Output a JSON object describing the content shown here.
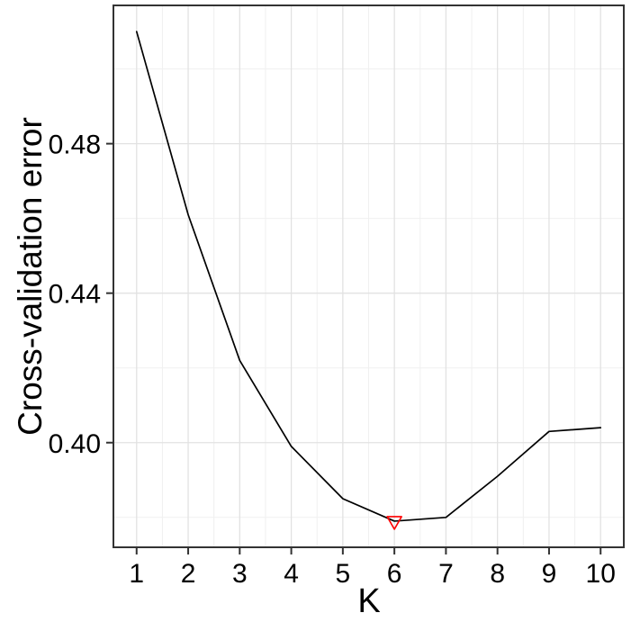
{
  "figure": {
    "xlabel": "K",
    "ylabel": "Cross-validation error"
  },
  "chart_data": {
    "type": "line",
    "title": "",
    "xlabel": "K",
    "ylabel": "Cross-validation error",
    "x": [
      1,
      2,
      3,
      4,
      5,
      6,
      7,
      8,
      9,
      10
    ],
    "values": [
      0.51,
      0.461,
      0.422,
      0.399,
      0.385,
      0.379,
      0.38,
      0.391,
      0.403,
      0.404
    ],
    "xlim": [
      0.55,
      10.45
    ],
    "ylim": [
      0.372,
      0.517
    ],
    "xticks": [
      1,
      2,
      3,
      4,
      5,
      6,
      7,
      8,
      9,
      10
    ],
    "xtick_labels": [
      "1",
      "2",
      "3",
      "4",
      "5",
      "6",
      "7",
      "8",
      "9",
      "10"
    ],
    "yticks": [
      0.4,
      0.44,
      0.48
    ],
    "ytick_labels": [
      "0.40",
      "0.44",
      "0.48"
    ],
    "x_minor": [
      1.5,
      2.5,
      3.5,
      4.5,
      5.5,
      6.5,
      7.5,
      8.5,
      9.5
    ],
    "y_minor": [
      0.38,
      0.42,
      0.46,
      0.5
    ],
    "grid": true,
    "legend": "none",
    "line_color": "#000000",
    "grid_major_color": "#e2e2e2",
    "grid_minor_color": "#f0f0f0",
    "panel_border_color": "#333333",
    "marker": {
      "type": "open-triangle-down",
      "meaning": "minimum cross-validation error",
      "x": 6,
      "y": 0.379,
      "color": "#ff0000"
    }
  }
}
